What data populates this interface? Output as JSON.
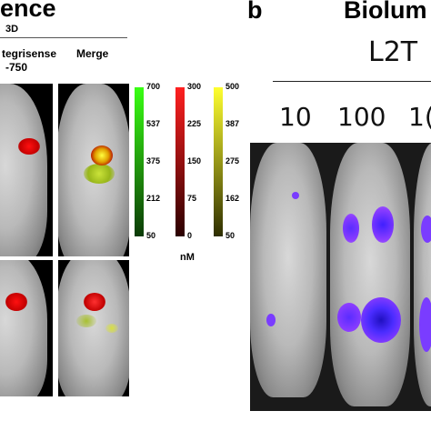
{
  "panel_a": {
    "title": "ence",
    "subhead": "3D",
    "col1_label_line1": "tegrisense",
    "col1_label_line2": "-750",
    "col2_label": "Merge",
    "unit": "nM",
    "scales": [
      {
        "color_top": "#39ff14",
        "color_bottom": "#0b3a06",
        "ticks": [
          "700",
          "537",
          "375",
          "212",
          "50"
        ]
      },
      {
        "color_top": "#ff2020",
        "color_bottom": "#2a0000",
        "ticks": [
          "300",
          "225",
          "150",
          "75",
          "0"
        ]
      },
      {
        "color_top": "#ffff30",
        "color_bottom": "#2e2e00",
        "ticks": [
          "500",
          "387",
          "275",
          "162",
          "50"
        ]
      }
    ]
  },
  "panel_b": {
    "letter": "b",
    "title": "Biolum",
    "group_label": "L2T",
    "doses": [
      "10",
      "100",
      "1("
    ]
  }
}
